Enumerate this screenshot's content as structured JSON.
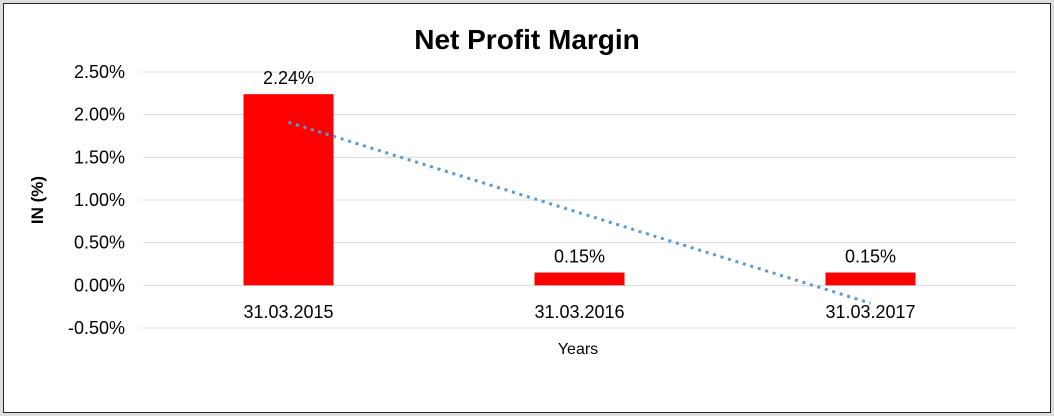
{
  "chart_data": {
    "type": "bar",
    "title": "Net Profit Margin",
    "xlabel": "Years",
    "ylabel": "IN (%)",
    "categories": [
      "31.03.2015",
      "31.03.2016",
      "31.03.2017"
    ],
    "values": [
      2.24,
      0.15,
      0.15
    ],
    "data_labels": [
      "2.24%",
      "0.15%",
      "0.15%"
    ],
    "y_ticks": [
      {
        "value": 2.5,
        "label": "2.50%"
      },
      {
        "value": 2.0,
        "label": "2.00%"
      },
      {
        "value": 1.5,
        "label": "1.50%"
      },
      {
        "value": 1.0,
        "label": "1.00%"
      },
      {
        "value": 0.5,
        "label": "0.50%"
      },
      {
        "value": 0.0,
        "label": "0.00%"
      },
      {
        "value": -0.5,
        "label": "-0.50%"
      }
    ],
    "ylim": [
      -0.5,
      2.5
    ],
    "grid": true,
    "legend": "none",
    "bar_color": "#FF0000",
    "gridline_color": "#D9D9D9",
    "text_color": "#000000",
    "trendline": {
      "style": "dotted",
      "color": "#5B9BD5",
      "start_value": 1.91,
      "end_value": -0.21
    }
  }
}
